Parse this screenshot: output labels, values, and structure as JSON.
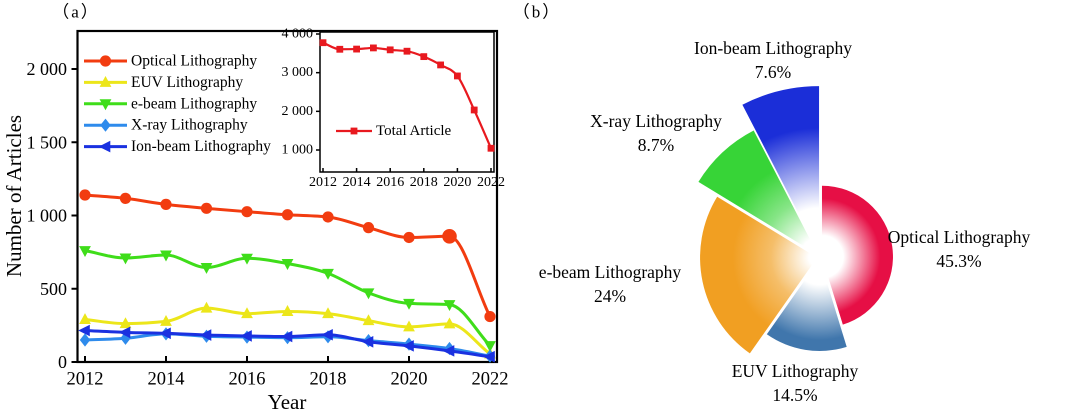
{
  "figure": {
    "background": "#ffffff"
  },
  "panel_a": {
    "label": "（a）",
    "xlabel": "Year",
    "ylabel": "Number of Articles",
    "chart_data": {
      "type": "line",
      "x": [
        2012,
        2013,
        2014,
        2015,
        2016,
        2017,
        2018,
        2019,
        2020,
        2021,
        2022
      ],
      "xtick_labels": [
        "2012",
        "2014",
        "2016",
        "2018",
        "2020",
        "2022"
      ],
      "ytick_values": [
        0,
        500,
        1000,
        1500,
        2000
      ],
      "ytick_labels": [
        "0",
        "500",
        "1 000",
        "1 500",
        "2 000"
      ],
      "ylim": [
        0,
        2260
      ],
      "series": [
        {
          "name": "Optical Lithography",
          "color": "#f23c10",
          "marker": "circle",
          "values": [
            1140,
            1117,
            1076,
            1049,
            1026,
            1005,
            990,
            917,
            850,
            858,
            310
          ]
        },
        {
          "name": "EUV Lithography",
          "color": "#ece61a",
          "marker": "triangle-up",
          "values": [
            290,
            262,
            277,
            368,
            330,
            345,
            330,
            282,
            240,
            260,
            55
          ]
        },
        {
          "name": "e-beam Lithography",
          "color": "#3fdd1a",
          "marker": "triangle-down",
          "values": [
            760,
            710,
            730,
            645,
            708,
            672,
            605,
            472,
            400,
            392,
            112
          ]
        },
        {
          "name": "X-ray Lithography",
          "color": "#2e8bec",
          "marker": "diamond",
          "values": [
            150,
            162,
            192,
            176,
            170,
            166,
            172,
            146,
            122,
            92,
            40
          ]
        },
        {
          "name": "Ion-beam Lithography",
          "color": "#1a31e0",
          "marker": "triangle-left",
          "values": [
            215,
            202,
            196,
            184,
            178,
            174,
            186,
            138,
            110,
            76,
            36
          ]
        }
      ]
    },
    "inset": {
      "chart_data": {
        "type": "line",
        "x": [
          2012,
          2013,
          2014,
          2015,
          2016,
          2017,
          2018,
          2019,
          2020,
          2021,
          2022
        ],
        "xtick_labels": [
          "2012",
          "2014",
          "2016",
          "2018",
          "2020",
          "2022"
        ],
        "ytick_values": [
          1000,
          2000,
          3000,
          4000
        ],
        "ytick_labels": [
          "1 000",
          "2 000",
          "3 000",
          "4 000"
        ],
        "series": [
          {
            "name": "Total Article",
            "color": "#e8191f",
            "marker": "square",
            "values": [
              3775,
              3605,
              3610,
              3640,
              3590,
              3555,
              3415,
              3200,
              2915,
              2035,
              1045
            ]
          }
        ]
      }
    }
  },
  "panel_b": {
    "label": "（b）",
    "chart_data": {
      "type": "pie",
      "slices": [
        {
          "name": "Optical Lithography",
          "pct_label": "45.3%",
          "value": 45.3,
          "color": "#e60f45"
        },
        {
          "name": "EUV Lithography",
          "pct_label": "14.5%",
          "value": 14.5,
          "color": "#4076ac"
        },
        {
          "name": "e-beam Lithography",
          "pct_label": "24%",
          "value": 24,
          "color": "#f19f22"
        },
        {
          "name": "X-ray Lithography",
          "pct_label": "8.7%",
          "value": 8.7,
          "color": "#37d437"
        },
        {
          "name": "Ion-beam Lithography",
          "pct_label": "7.6%",
          "value": 7.6,
          "color": "#1b2ed8"
        }
      ]
    }
  }
}
